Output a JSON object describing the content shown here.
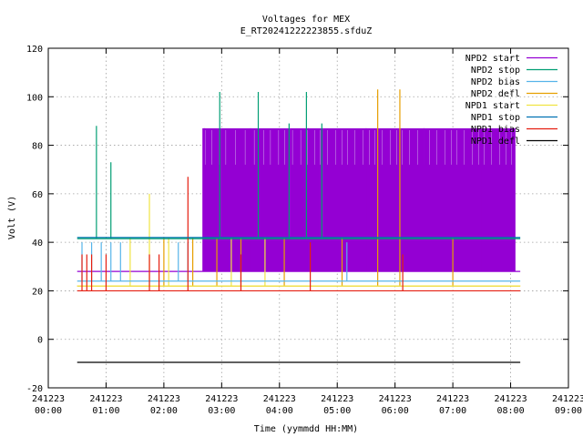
{
  "chart_data": {
    "type": "line",
    "title": "Voltages for MEX",
    "subtitle": "E_RT20241222223855.sfduZ",
    "xlabel": "Time (yymmdd HH:MM)",
    "ylabel": "Volt (V)",
    "xlim": [
      "2024-12-23 00:00",
      "2024-12-23 09:00"
    ],
    "ylim": [
      -20,
      120
    ],
    "grid": true,
    "legend_position": "top-right",
    "y_ticks": [
      "-20",
      "0",
      "20",
      "40",
      "60",
      "80",
      "100",
      "120"
    ],
    "x_ticks": [
      {
        "date": "241223",
        "time": "00:00"
      },
      {
        "date": "241223",
        "time": "01:00"
      },
      {
        "date": "241223",
        "time": "02:00"
      },
      {
        "date": "241223",
        "time": "03:00"
      },
      {
        "date": "241223",
        "time": "04:00"
      },
      {
        "date": "241223",
        "time": "05:00"
      },
      {
        "date": "241223",
        "time": "06:00"
      },
      {
        "date": "241223",
        "time": "07:00"
      },
      {
        "date": "241223",
        "time": "08:00"
      },
      {
        "date": "241223",
        "time": "09:00"
      }
    ],
    "series": [
      {
        "name": "NPD2 start",
        "color": "#9400d3",
        "baseline": 28,
        "spikes": [
          {
            "x": "2024-12-23 02:42",
            "y": 87
          },
          {
            "x": "2024-12-23 03:30",
            "y": 87
          },
          {
            "x": "2024-12-23 04:30",
            "y": 87
          },
          {
            "x": "2024-12-23 05:30",
            "y": 87
          },
          {
            "x": "2024-12-23 06:30",
            "y": 87
          },
          {
            "x": "2024-12-23 07:30",
            "y": 87
          }
        ],
        "band": {
          "x_start": "2024-12-23 02:40",
          "x_end": "2024-12-23 08:05",
          "low": 28,
          "high": 87,
          "mid": 72
        }
      },
      {
        "name": "NPD2 stop",
        "color": "#009e73",
        "baseline": 41.5,
        "spikes": [
          {
            "x": "2024-12-23 00:50",
            "y": 88
          },
          {
            "x": "2024-12-23 01:05",
            "y": 73
          },
          {
            "x": "2024-12-23 02:58",
            "y": 102
          },
          {
            "x": "2024-12-23 03:38",
            "y": 102
          },
          {
            "x": "2024-12-23 04:28",
            "y": 102
          },
          {
            "x": "2024-12-23 04:10",
            "y": 89
          },
          {
            "x": "2024-12-23 04:44",
            "y": 89
          }
        ]
      },
      {
        "name": "NPD2 bias",
        "color": "#56b4e9",
        "baseline": 24,
        "spikes": [
          {
            "x": "2024-12-23 00:35",
            "y": 40
          },
          {
            "x": "2024-12-23 00:45",
            "y": 40
          },
          {
            "x": "2024-12-23 00:55",
            "y": 40
          },
          {
            "x": "2024-12-23 01:05",
            "y": 40
          },
          {
            "x": "2024-12-23 01:15",
            "y": 40
          },
          {
            "x": "2024-12-23 02:15",
            "y": 40
          },
          {
            "x": "2024-12-23 02:25",
            "y": 40
          },
          {
            "x": "2024-12-23 05:10",
            "y": 40
          }
        ]
      },
      {
        "name": "NPD2 defl",
        "color": "#e69f00",
        "baseline": 22,
        "spikes": [
          {
            "x": "2024-12-23 02:00",
            "y": 42
          },
          {
            "x": "2024-12-23 02:30",
            "y": 42
          },
          {
            "x": "2024-12-23 02:55",
            "y": 42
          },
          {
            "x": "2024-12-23 03:20",
            "y": 42
          },
          {
            "x": "2024-12-23 04:05",
            "y": 42
          },
          {
            "x": "2024-12-23 05:05",
            "y": 42
          },
          {
            "x": "2024-12-23 05:42",
            "y": 103
          },
          {
            "x": "2024-12-23 06:05",
            "y": 103
          },
          {
            "x": "2024-12-23 07:00",
            "y": 42
          }
        ]
      },
      {
        "name": "NPD1 start",
        "color": "#f0e442",
        "baseline": 22,
        "spikes": [
          {
            "x": "2024-12-23 01:25",
            "y": 42
          },
          {
            "x": "2024-12-23 01:45",
            "y": 60
          },
          {
            "x": "2024-12-23 02:05",
            "y": 42
          },
          {
            "x": "2024-12-23 03:10",
            "y": 42
          },
          {
            "x": "2024-12-23 03:45",
            "y": 42
          }
        ]
      },
      {
        "name": "NPD1 stop",
        "color": "#0072b2",
        "baseline": 42,
        "spikes": []
      },
      {
        "name": "NPD1 bias",
        "color": "#e51e10",
        "baseline": 20,
        "spikes": [
          {
            "x": "2024-12-23 00:35",
            "y": 35
          },
          {
            "x": "2024-12-23 00:40",
            "y": 35
          },
          {
            "x": "2024-12-23 00:45",
            "y": 35
          },
          {
            "x": "2024-12-23 01:00",
            "y": 35
          },
          {
            "x": "2024-12-23 01:45",
            "y": 35
          },
          {
            "x": "2024-12-23 01:55",
            "y": 35
          },
          {
            "x": "2024-12-23 02:25",
            "y": 67
          },
          {
            "x": "2024-12-23 03:20",
            "y": 35
          },
          {
            "x": "2024-12-23 04:32",
            "y": 40
          },
          {
            "x": "2024-12-23 06:08",
            "y": 35
          }
        ]
      },
      {
        "name": "NPD1 defl",
        "color": "#000000",
        "baseline": -9.5,
        "spikes": []
      }
    ],
    "x_range_data": [
      "2024-12-23 00:30",
      "2024-12-23 08:10"
    ]
  }
}
